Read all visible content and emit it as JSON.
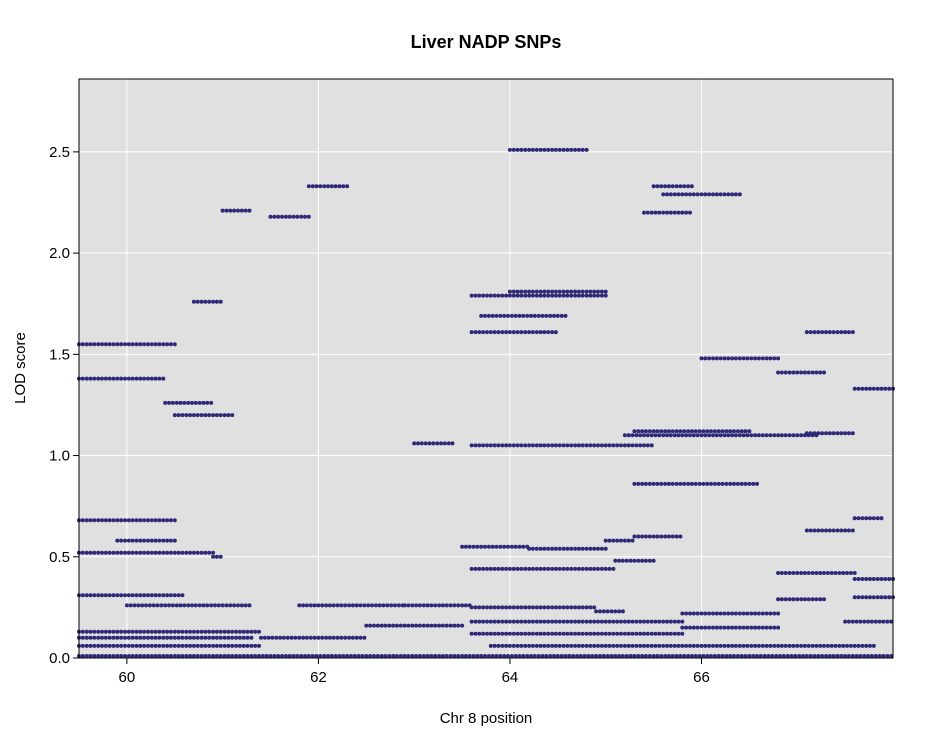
{
  "chart_data": {
    "type": "scatter",
    "title": "Liver NADP SNPs",
    "xlabel": "Chr 8 position",
    "ylabel": "LOD score",
    "xlim": [
      59.5,
      68.0
    ],
    "ylim": [
      0.0,
      2.86
    ],
    "x_ticks": [
      60,
      62,
      64,
      66
    ],
    "x_tick_labels": [
      "60",
      "62",
      "64",
      "66"
    ],
    "y_ticks": [
      0.0,
      0.5,
      1.0,
      1.5,
      2.0,
      2.5
    ],
    "y_tick_labels": [
      "0.0",
      "0.5",
      "1.0",
      "1.5",
      "2.0",
      "2.5"
    ],
    "grid": true,
    "colors": {
      "points": "#2e2a78",
      "panel": "#e0e0e0",
      "grid": "#ffffff"
    },
    "series": [
      {
        "segments": [
          [
            59.5,
            60.5,
            1.55
          ],
          [
            59.5,
            60.4,
            1.38
          ],
          [
            60.4,
            60.9,
            1.26
          ],
          [
            60.5,
            61.1,
            1.2
          ],
          [
            59.5,
            60.5,
            0.68
          ],
          [
            59.9,
            60.5,
            0.58
          ],
          [
            59.5,
            60.9,
            0.52
          ],
          [
            60.9,
            61.0,
            0.5
          ],
          [
            59.5,
            60.6,
            0.31
          ],
          [
            60.0,
            61.3,
            0.26
          ],
          [
            61.8,
            62.9,
            0.26
          ],
          [
            62.9,
            63.6,
            0.26
          ],
          [
            59.5,
            61.4,
            0.13
          ],
          [
            59.5,
            61.3,
            0.1
          ],
          [
            61.4,
            62.5,
            0.1
          ],
          [
            62.5,
            63.5,
            0.16
          ],
          [
            59.5,
            61.4,
            0.06
          ],
          [
            59.5,
            68.0,
            0.01
          ],
          [
            60.7,
            61.0,
            1.76
          ],
          [
            61.0,
            61.3,
            2.21
          ],
          [
            61.5,
            61.9,
            2.18
          ],
          [
            61.9,
            62.3,
            2.33
          ],
          [
            63.0,
            63.4,
            1.06
          ],
          [
            63.5,
            64.2,
            0.55
          ],
          [
            64.2,
            65.0,
            0.54
          ],
          [
            65.0,
            65.3,
            0.58
          ],
          [
            63.6,
            65.1,
            0.44
          ],
          [
            65.1,
            65.5,
            0.48
          ],
          [
            63.6,
            64.9,
            0.25
          ],
          [
            64.9,
            65.2,
            0.23
          ],
          [
            63.6,
            65.8,
            0.18
          ],
          [
            63.6,
            65.8,
            0.12
          ],
          [
            63.8,
            67.8,
            0.06
          ],
          [
            63.6,
            64.5,
            1.61
          ],
          [
            63.7,
            64.6,
            1.69
          ],
          [
            63.6,
            65.0,
            1.79
          ],
          [
            64.0,
            65.0,
            1.81
          ],
          [
            64.0,
            64.8,
            2.51
          ],
          [
            63.6,
            65.5,
            1.05
          ],
          [
            65.2,
            67.2,
            1.1
          ],
          [
            65.3,
            66.5,
            1.12
          ],
          [
            67.1,
            67.6,
            1.11
          ],
          [
            66.0,
            66.8,
            1.48
          ],
          [
            66.8,
            67.3,
            1.41
          ],
          [
            65.8,
            66.8,
            0.22
          ],
          [
            65.8,
            66.8,
            0.15
          ],
          [
            66.8,
            67.3,
            0.29
          ],
          [
            67.1,
            67.6,
            0.63
          ],
          [
            66.8,
            67.6,
            0.42
          ],
          [
            67.6,
            67.9,
            0.69
          ],
          [
            67.1,
            67.6,
            1.61
          ],
          [
            67.6,
            68.0,
            1.33
          ],
          [
            65.6,
            66.4,
            2.29
          ],
          [
            65.5,
            65.9,
            2.33
          ],
          [
            65.4,
            65.9,
            2.2
          ],
          [
            67.6,
            68.0,
            0.39
          ],
          [
            67.6,
            68.0,
            0.3
          ],
          [
            67.5,
            68.0,
            0.18
          ],
          [
            65.3,
            66.6,
            0.86
          ],
          [
            65.3,
            65.8,
            0.6
          ]
        ]
      }
    ]
  }
}
